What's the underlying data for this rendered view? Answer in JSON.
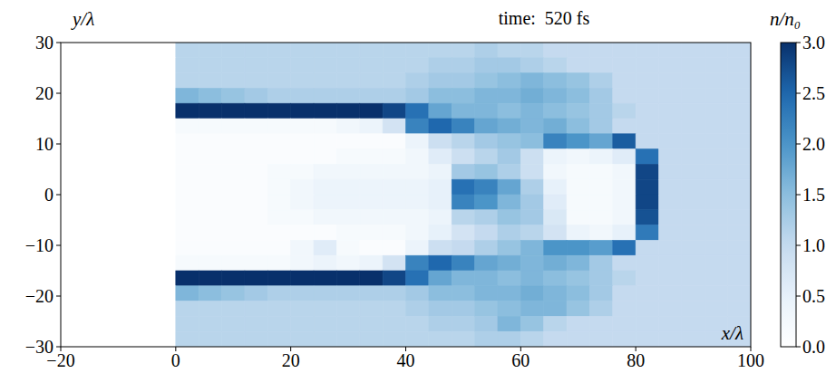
{
  "chart_data": {
    "type": "heatmap",
    "title": "time:  520 fs",
    "x_label": "x/λ",
    "y_label": "y/λ",
    "colorbar_label": "n/n₀",
    "xlim": [
      -20,
      100
    ],
    "ylim": [
      -30,
      30
    ],
    "xticks": [
      -20,
      0,
      20,
      40,
      60,
      80,
      100
    ],
    "yticks": [
      -30,
      -20,
      -10,
      0,
      10,
      20,
      30
    ],
    "x_edges": [
      -20,
      -16,
      -12,
      -8,
      -4,
      0,
      4,
      8,
      12,
      16,
      20,
      24,
      28,
      32,
      36,
      40,
      44,
      48,
      52,
      56,
      60,
      64,
      68,
      72,
      76,
      80,
      84,
      88,
      92,
      96,
      100
    ],
    "y_edges": [
      30,
      27,
      24,
      21,
      18,
      15,
      12,
      9,
      6,
      3,
      0,
      -3,
      -6,
      -9,
      -12,
      -15,
      -18,
      -21,
      -24,
      -27,
      -30
    ],
    "color_range": [
      0,
      3
    ],
    "color_ticks": [
      {
        "value": 0,
        "label": "0.0"
      },
      0.5,
      {
        "value": 1,
        "label": "1.0"
      },
      1.5,
      {
        "value": 2,
        "label": "2.0"
      },
      2.5,
      {
        "value": 3,
        "label": "3.0"
      }
    ],
    "cells": [
      [
        0,
        0,
        0,
        0,
        0,
        1.1,
        1.1,
        1.1,
        1.1,
        1.1,
        1.1,
        1.1,
        1.1,
        1.1,
        1.1,
        1.1,
        1.1,
        1.1,
        1.2,
        1.1,
        1.1,
        1.0,
        1.0,
        1.0,
        1.0,
        1.0,
        1.0,
        1.0,
        1.0,
        1.0
      ],
      [
        0,
        0,
        0,
        0,
        0,
        1.1,
        1.1,
        1.1,
        1.1,
        1.1,
        1.1,
        1.1,
        1.1,
        1.1,
        1.1,
        1.1,
        1.2,
        1.2,
        1.3,
        1.3,
        1.2,
        1.1,
        1.0,
        1.0,
        1.0,
        1.0,
        1.0,
        1.0,
        1.0,
        1.0
      ],
      [
        0,
        0,
        0,
        0,
        0,
        1.1,
        1.1,
        1.1,
        1.1,
        1.1,
        1.1,
        1.1,
        1.1,
        1.1,
        1.1,
        1.2,
        1.3,
        1.3,
        1.4,
        1.5,
        1.6,
        1.5,
        1.4,
        1.2,
        1.0,
        1.0,
        1.0,
        1.0,
        1.0,
        1.0
      ],
      [
        0,
        0,
        0,
        0,
        0,
        1.6,
        1.5,
        1.4,
        1.3,
        1.2,
        1.2,
        1.2,
        1.2,
        1.2,
        1.2,
        1.3,
        1.5,
        1.5,
        1.6,
        1.6,
        1.7,
        1.6,
        1.5,
        1.3,
        1.0,
        1.0,
        1.0,
        1.0,
        1.0,
        1.0
      ],
      [
        0,
        0,
        0,
        0,
        0,
        3.0,
        3.0,
        3.0,
        3.0,
        3.0,
        3.0,
        3.0,
        3.0,
        3.0,
        2.8,
        2.4,
        1.8,
        1.6,
        1.6,
        1.5,
        1.6,
        1.5,
        1.4,
        1.3,
        1.1,
        1.0,
        1.0,
        1.0,
        1.0,
        1.0
      ],
      [
        0,
        0,
        0,
        0,
        0,
        0.2,
        0.2,
        0.2,
        0.2,
        0.2,
        0.2,
        0.2,
        0.3,
        0.4,
        0.8,
        2.2,
        2.5,
        2.2,
        1.8,
        1.7,
        1.6,
        1.7,
        1.5,
        1.3,
        1.0,
        1.0,
        1.0,
        1.0,
        1.0,
        1.0
      ],
      [
        0,
        0,
        0,
        0,
        0,
        0.1,
        0.1,
        0.1,
        0.1,
        0.1,
        0.1,
        0.1,
        0.1,
        0.1,
        0.1,
        0.4,
        0.9,
        1.1,
        1.3,
        1.4,
        1.5,
        2.2,
        2.0,
        1.8,
        2.6,
        1.0,
        1.0,
        1.0,
        1.0,
        1.0
      ],
      [
        0,
        0,
        0,
        0,
        0,
        0.1,
        0.1,
        0.1,
        0.1,
        0.1,
        0.1,
        0.1,
        0.2,
        0.2,
        0.2,
        0.3,
        0.6,
        0.9,
        1.1,
        1.3,
        0.9,
        0.4,
        0.3,
        0.4,
        0.6,
        2.4,
        1.0,
        1.0,
        1.0,
        1.0
      ],
      [
        0,
        0,
        0,
        0,
        0,
        0.1,
        0.1,
        0.1,
        0.1,
        0.2,
        0.2,
        0.3,
        0.3,
        0.3,
        0.3,
        0.3,
        0.4,
        1.3,
        1.4,
        1.2,
        0.9,
        0.3,
        0.2,
        0.2,
        0.3,
        2.8,
        1.0,
        1.0,
        1.0,
        1.0
      ],
      [
        0,
        0,
        0,
        0,
        0,
        0.1,
        0.1,
        0.1,
        0.1,
        0.2,
        0.3,
        0.4,
        0.4,
        0.4,
        0.4,
        0.4,
        0.5,
        2.4,
        2.2,
        1.8,
        1.2,
        0.5,
        0.2,
        0.2,
        0.3,
        2.8,
        1.0,
        1.0,
        1.0,
        1.0
      ],
      [
        0,
        0,
        0,
        0,
        0,
        0.1,
        0.1,
        0.1,
        0.1,
        0.2,
        0.3,
        0.4,
        0.4,
        0.4,
        0.4,
        0.4,
        0.5,
        2.2,
        2.0,
        1.6,
        1.3,
        0.6,
        0.2,
        0.2,
        0.3,
        2.8,
        1.0,
        1.0,
        1.0,
        1.0
      ],
      [
        0,
        0,
        0,
        0,
        0,
        0.1,
        0.1,
        0.1,
        0.1,
        0.2,
        0.2,
        0.3,
        0.3,
        0.3,
        0.3,
        0.3,
        0.4,
        1.1,
        1.2,
        1.4,
        1.3,
        0.7,
        0.2,
        0.2,
        0.3,
        2.7,
        1.0,
        1.0,
        1.0,
        1.0
      ],
      [
        0,
        0,
        0,
        0,
        0,
        0.1,
        0.1,
        0.1,
        0.1,
        0.1,
        0.1,
        0.1,
        0.2,
        0.2,
        0.2,
        0.3,
        0.5,
        0.8,
        1.0,
        1.2,
        1.1,
        0.8,
        0.4,
        0.3,
        0.5,
        2.3,
        1.0,
        1.0,
        1.0,
        1.0
      ],
      [
        0,
        0,
        0,
        0,
        0,
        0.1,
        0.1,
        0.1,
        0.1,
        0.1,
        0.3,
        0.6,
        0.2,
        0.1,
        0.1,
        0.4,
        0.9,
        1.0,
        1.2,
        1.4,
        1.6,
        2.0,
        2.0,
        1.9,
        2.4,
        1.0,
        1.0,
        1.0,
        1.0,
        1.0
      ],
      [
        0,
        0,
        0,
        0,
        0,
        0.2,
        0.2,
        0.2,
        0.2,
        0.2,
        0.3,
        0.4,
        0.3,
        0.4,
        0.8,
        2.2,
        2.5,
        2.2,
        1.8,
        1.7,
        1.6,
        1.7,
        1.6,
        1.3,
        1.0,
        1.0,
        1.0,
        1.0,
        1.0,
        1.0
      ],
      [
        0,
        0,
        0,
        0,
        0,
        3.0,
        3.0,
        3.0,
        3.0,
        3.0,
        3.0,
        3.0,
        3.0,
        3.0,
        2.8,
        2.4,
        1.8,
        1.6,
        1.6,
        1.5,
        1.6,
        1.5,
        1.4,
        1.3,
        1.1,
        1.0,
        1.0,
        1.0,
        1.0,
        1.0
      ],
      [
        0,
        0,
        0,
        0,
        0,
        1.6,
        1.5,
        1.4,
        1.3,
        1.2,
        1.2,
        1.2,
        1.2,
        1.2,
        1.2,
        1.3,
        1.5,
        1.5,
        1.6,
        1.6,
        1.7,
        1.6,
        1.5,
        1.3,
        1.0,
        1.0,
        1.0,
        1.0,
        1.0,
        1.0
      ],
      [
        0,
        0,
        0,
        0,
        0,
        1.1,
        1.1,
        1.1,
        1.1,
        1.1,
        1.1,
        1.1,
        1.1,
        1.1,
        1.1,
        1.2,
        1.3,
        1.3,
        1.4,
        1.5,
        1.6,
        1.6,
        1.4,
        1.2,
        1.0,
        1.0,
        1.0,
        1.0,
        1.0,
        1.0
      ],
      [
        0,
        0,
        0,
        0,
        0,
        1.1,
        1.1,
        1.1,
        1.1,
        1.1,
        1.1,
        1.1,
        1.1,
        1.1,
        1.1,
        1.1,
        1.2,
        1.2,
        1.3,
        1.6,
        1.4,
        1.1,
        1.0,
        1.0,
        1.0,
        1.0,
        1.0,
        1.0,
        1.0,
        1.0
      ],
      [
        0,
        0,
        0,
        0,
        0,
        1.1,
        1.1,
        1.1,
        1.1,
        1.1,
        1.1,
        1.1,
        1.1,
        1.1,
        1.1,
        1.1,
        1.1,
        1.1,
        1.2,
        1.2,
        1.1,
        1.0,
        1.0,
        1.0,
        1.0,
        1.0,
        1.0,
        1.0,
        1.0,
        1.0
      ]
    ]
  }
}
